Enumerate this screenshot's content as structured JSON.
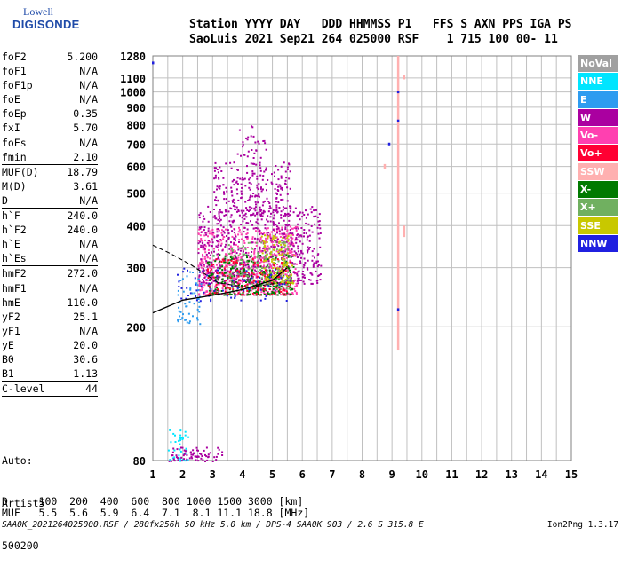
{
  "logo": {
    "line1": "Lowell",
    "line2": "DIGISONDE"
  },
  "header": {
    "line1": "Station YYYY DAY   DDD HHMMSS P1   FFS S AXN PPS IGA PS",
    "line2": "SaoLuis 2021 Sep21 264 025000 RSF    1 715 100 00- 11"
  },
  "params": [
    {
      "label": "foF2",
      "value": "5.200"
    },
    {
      "label": "foF1",
      "value": "N/A"
    },
    {
      "label": "foF1p",
      "value": "N/A"
    },
    {
      "label": "foE",
      "value": "N/A"
    },
    {
      "label": "foEp",
      "value": "0.35"
    },
    {
      "label": "fxI",
      "value": "5.70"
    },
    {
      "label": "foEs",
      "value": "N/A"
    },
    {
      "label": "fmin",
      "value": "2.10",
      "sep_after": true
    },
    {
      "label": "MUF(D)",
      "value": "18.79"
    },
    {
      "label": "M(D)",
      "value": "3.61"
    },
    {
      "label": "D",
      "value": "N/A",
      "sep_after": true
    },
    {
      "label": "h`F",
      "value": "240.0"
    },
    {
      "label": "h`F2",
      "value": "240.0"
    },
    {
      "label": "h`E",
      "value": "N/A"
    },
    {
      "label": "h`Es",
      "value": "N/A",
      "sep_after": true
    },
    {
      "label": "hmF2",
      "value": "272.0"
    },
    {
      "label": "hmF1",
      "value": "N/A"
    },
    {
      "label": "hmE",
      "value": "110.0"
    },
    {
      "label": "yF2",
      "value": "25.1"
    },
    {
      "label": "yF1",
      "value": "N/A"
    },
    {
      "label": "yE",
      "value": "20.0"
    },
    {
      "label": "B0",
      "value": "30.6"
    },
    {
      "label": "B1",
      "value": "1.13",
      "sep_after": true
    },
    {
      "label": "C-level",
      "value": "44",
      "sep_after": true
    }
  ],
  "auto": {
    "line1": "Auto:",
    "line2": "Artist5",
    "line3": "500200"
  },
  "bottom": {
    "d_row": "D     100  200  400  600  800 1000 1500 3000 [km]",
    "muf_row": "MUF   5.5  5.6  5.9  6.4  7.1  8.1 11.1 18.8 [MHz]"
  },
  "footer": {
    "left": "SAA0K_2021264025000.RSF / 280fx256h 50 kHz 5.0 km / DPS-4 SAA0K 903 / 2.6 S 315.8 E",
    "right": "Ion2Png 1.3.17"
  },
  "legend": [
    {
      "label": "NoVal",
      "color": "#a0a0a0"
    },
    {
      "label": "NNE",
      "color": "#00e5ff"
    },
    {
      "label": "E",
      "color": "#2e9cf0"
    },
    {
      "label": "W",
      "color": "#aa00a0"
    },
    {
      "label": "Vo-",
      "color": "#ff40b0"
    },
    {
      "label": "Vo+",
      "color": "#ff0033"
    },
    {
      "label": "SSW",
      "color": "#ffb0b0"
    },
    {
      "label": "X-",
      "color": "#007a00"
    },
    {
      "label": "X+",
      "color": "#70b060"
    },
    {
      "label": "SSE",
      "color": "#c8c800"
    },
    {
      "label": "NNW",
      "color": "#2020e0"
    }
  ],
  "chart_data": {
    "type": "scatter",
    "xlim": [
      1,
      15
    ],
    "ylim": [
      80,
      1280
    ],
    "x_ticks": [
      1,
      2,
      3,
      4,
      5,
      6,
      7,
      8,
      9,
      10,
      11,
      12,
      13,
      14,
      15
    ],
    "y_ticks": [
      80,
      200,
      300,
      400,
      500,
      600,
      700,
      800,
      900,
      1000,
      1100,
      1280
    ],
    "grid": true,
    "y_scale": "log",
    "legend_position": "right",
    "clusters": [
      {
        "color": "#ff40b0",
        "x": [
          2.5,
          5.8
        ],
        "y": [
          250,
          400
        ],
        "n": 700
      },
      {
        "color": "#aa00a0",
        "x": [
          2.5,
          6.6
        ],
        "y": [
          270,
          460
        ],
        "n": 650
      },
      {
        "color": "#007a00",
        "x": [
          2.8,
          5.7
        ],
        "y": [
          250,
          330
        ],
        "n": 260
      },
      {
        "color": "#70b060",
        "x": [
          3.5,
          5.6
        ],
        "y": [
          260,
          360
        ],
        "n": 160
      },
      {
        "color": "#c8c800",
        "x": [
          4.6,
          5.7
        ],
        "y": [
          270,
          380
        ],
        "n": 110
      },
      {
        "color": "#ff0033",
        "x": [
          2.8,
          5.6
        ],
        "y": [
          250,
          320
        ],
        "n": 140
      },
      {
        "color": "#2020e0",
        "x": [
          1.8,
          5.6
        ],
        "y": [
          240,
          300
        ],
        "n": 70
      },
      {
        "color": "#aa00a0",
        "x": [
          3.0,
          5.6
        ],
        "y": [
          430,
          620
        ],
        "n": 240
      },
      {
        "color": "#aa00a0",
        "x": [
          3.8,
          4.8
        ],
        "y": [
          640,
          800
        ],
        "n": 30
      },
      {
        "color": "#00e5ff",
        "x": [
          1.5,
          2.2
        ],
        "y": [
          80,
          100
        ],
        "n": 40
      },
      {
        "color": "#aa00a0",
        "x": [
          1.5,
          3.3
        ],
        "y": [
          80,
          88
        ],
        "n": 70
      },
      {
        "color": "#2e9cf0",
        "x": [
          1.8,
          2.6
        ],
        "y": [
          205,
          300
        ],
        "n": 50
      }
    ],
    "vertical_strips": [
      {
        "color": "#ffb0b0",
        "x": 9.2,
        "y": [
          170,
          1280
        ]
      },
      {
        "color": "#ffb0b0",
        "x": 9.4,
        "y": [
          1090,
          1120
        ]
      },
      {
        "color": "#ffb0b0",
        "x": 9.4,
        "y": [
          370,
          400
        ]
      },
      {
        "color": "#ffb0b0",
        "x": 8.75,
        "y": [
          590,
          610
        ]
      }
    ],
    "points": [
      {
        "x": 9.2,
        "y": 1000,
        "color": "#2020e0"
      },
      {
        "x": 9.2,
        "y": 820,
        "color": "#2020e0"
      },
      {
        "x": 9.2,
        "y": 225,
        "color": "#2020e0"
      },
      {
        "x": 8.9,
        "y": 700,
        "color": "#2020e0"
      },
      {
        "x": 1.0,
        "y": 1220,
        "color": "#2020e0"
      }
    ],
    "trace_solid": {
      "x": [
        1.0,
        2.0,
        3.0,
        4.0,
        5.0,
        5.5
      ],
      "y": [
        220,
        240,
        248,
        258,
        275,
        300
      ]
    },
    "trace_dashed": {
      "x": [
        1.0,
        1.6,
        2.3,
        3.2,
        4.2,
        5.2
      ],
      "y": [
        350,
        330,
        305,
        270,
        262,
        270
      ]
    }
  }
}
